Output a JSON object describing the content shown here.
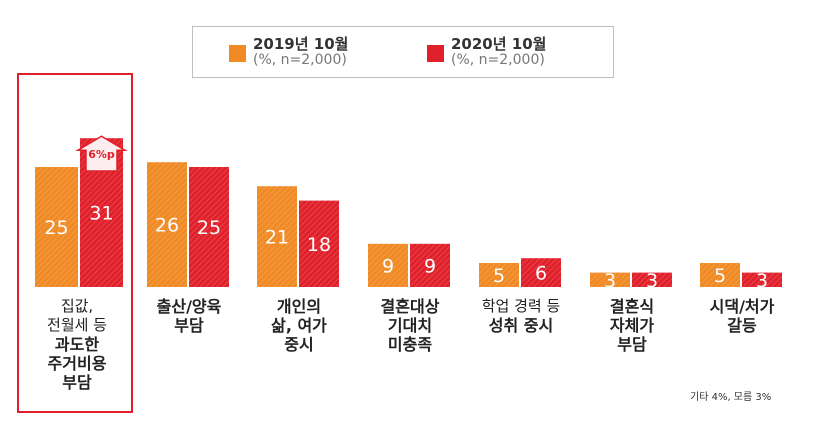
{
  "chart_data": {
    "type": "bar",
    "categories": [
      {
        "lines": [
          "집값,",
          "전월세 등"
        ],
        "bold_lines": [
          "과도한",
          "주거비용",
          "부담"
        ]
      },
      {
        "lines": [],
        "bold_lines": [
          "출산/양육",
          "부담"
        ]
      },
      {
        "lines": [],
        "bold_lines": [
          "개인의",
          "삶, 여가",
          "중시"
        ]
      },
      {
        "lines": [],
        "bold_lines": [
          "결혼대상",
          "기대치",
          "미충족"
        ]
      },
      {
        "lines": [
          "학업 경력 등"
        ],
        "bold_lines": [
          "성취 중시"
        ]
      },
      {
        "lines": [],
        "bold_lines": [
          "결혼식",
          "자체가",
          "부담"
        ]
      },
      {
        "lines": [],
        "bold_lines": [
          "시댁/처가",
          "갈등"
        ]
      }
    ],
    "series": [
      {
        "name": "2019년 10월",
        "note": "(%, n=2,000)",
        "color": "#f08a24",
        "values": [
          25,
          26,
          21,
          9,
          5,
          3,
          5
        ]
      },
      {
        "name": "2020년 10월",
        "note": "(%, n=2,000)",
        "color": "#e0202a",
        "values": [
          31,
          25,
          18,
          9,
          6,
          3,
          3
        ]
      }
    ],
    "annotation": {
      "text": "6%p",
      "category_index": 0
    },
    "footnote": "기타 4%, 모름 3%",
    "ylim": [
      0,
      31
    ]
  }
}
